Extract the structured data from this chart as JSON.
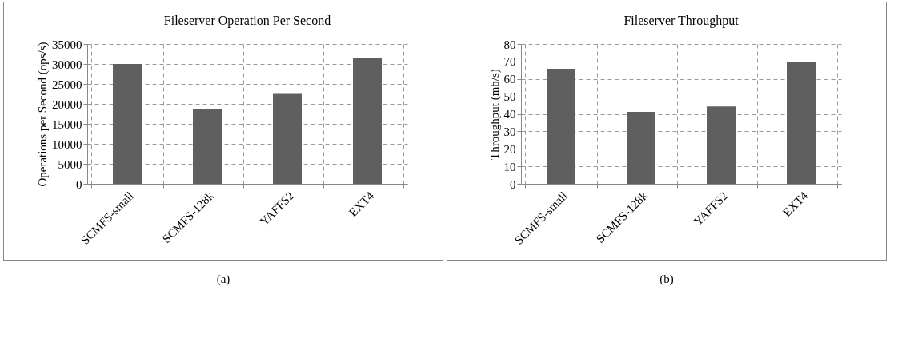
{
  "chart_data": [
    {
      "type": "bar",
      "title": "Fileserver Operation Per Second",
      "ylabel": "Operations per Second (ops/s)",
      "categories": [
        "SCMFS-small",
        "SCMFS-128k",
        "YAFFS2",
        "EXT4"
      ],
      "values": [
        30000,
        18600,
        22500,
        31400
      ],
      "color": "#5f5f5f",
      "ylim": [
        0,
        35000
      ],
      "yticks": [
        0,
        5000,
        10000,
        15000,
        20000,
        25000,
        30000,
        35000
      ],
      "grid": true,
      "annotations": [
        "(a)"
      ]
    },
    {
      "type": "bar",
      "title": "Fileserver Throughput",
      "ylabel": "Throughput (mb/s)",
      "categories": [
        "SCMFS-small",
        "SCMFS-128k",
        "YAFFS2",
        "EXT4"
      ],
      "values": [
        65.8,
        41.2,
        44.2,
        70
      ],
      "color": "#5f5f5f",
      "ylim": [
        0,
        80
      ],
      "yticks": [
        0,
        10,
        20,
        30,
        40,
        50,
        60,
        70,
        80
      ],
      "grid": true,
      "annotations": [
        "(b)"
      ]
    }
  ]
}
